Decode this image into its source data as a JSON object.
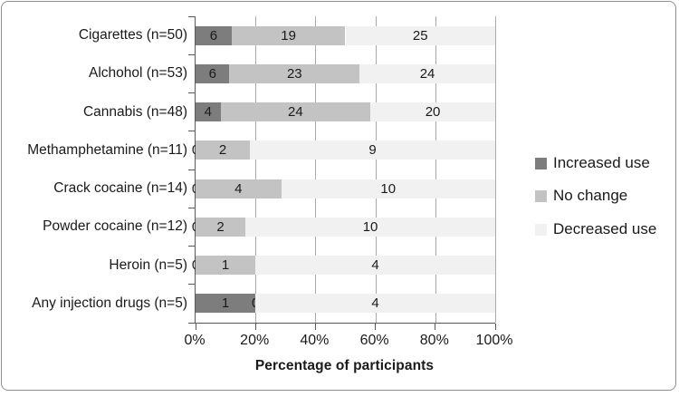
{
  "chart_data": {
    "type": "bar",
    "orientation": "horizontal",
    "stacked": true,
    "title": "",
    "xlabel": "Percentage of participants",
    "xlim": [
      0,
      100
    ],
    "grid": true,
    "legend_position": "right",
    "categories": [
      "Cigarettes (n=50)",
      "Alchohol (n=53)",
      "Cannabis (n=48)",
      "Methamphetamine (n=11)",
      "Crack cocaine (n=14)",
      "Powder cocaine (n=12)",
      "Heroin (n=5)",
      "Any injection drugs (n=5)"
    ],
    "totals": [
      50,
      53,
      48,
      11,
      14,
      12,
      5,
      5
    ],
    "series": [
      {
        "name": "Increased use",
        "color": "#7d7d7d",
        "values": [
          6,
          6,
          4,
          0,
          0,
          0,
          0,
          1
        ]
      },
      {
        "name": "No change",
        "color": "#c3c3c3",
        "values": [
          19,
          23,
          24,
          2,
          4,
          2,
          1,
          0
        ]
      },
      {
        "name": "Decreased use",
        "color": "#f1f1f1",
        "values": [
          25,
          24,
          20,
          9,
          10,
          10,
          4,
          4
        ]
      }
    ],
    "x_ticks": [
      {
        "label": "0%",
        "value": 0
      },
      {
        "label": "20%",
        "value": 20
      },
      {
        "label": "40%",
        "value": 40
      },
      {
        "label": "60%",
        "value": 60
      },
      {
        "label": "80%",
        "value": 80
      },
      {
        "label": "100%",
        "value": 100
      }
    ]
  },
  "colors": {
    "axis": "#595959",
    "gridline": "#a9a9a9",
    "text": "#1a1a1a",
    "figure_border": "#8e8e8e"
  }
}
